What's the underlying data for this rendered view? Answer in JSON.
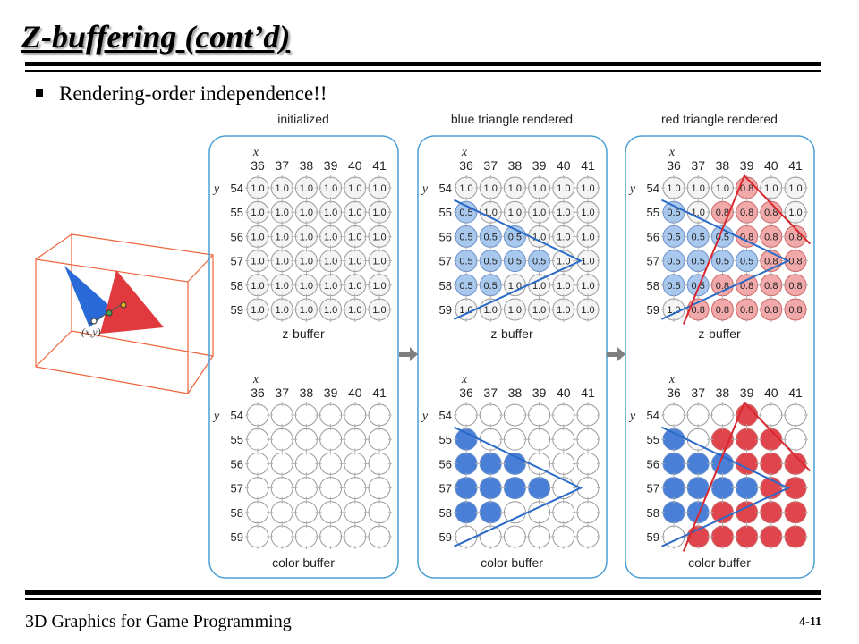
{
  "slide": {
    "title": "Z-buffering (cont’d)",
    "bullet": "Rendering-order independence!!",
    "footer": "3D Graphics for Game Programming",
    "page_number": "4-11"
  },
  "panels": [
    {
      "heading": "initialized",
      "zbuffer_label": "z-buffer",
      "colorbuffer_label": "color buffer"
    },
    {
      "heading": "blue triangle rendered",
      "zbuffer_label": "z-buffer",
      "colorbuffer_label": "color buffer"
    },
    {
      "heading": "red triangle rendered",
      "zbuffer_label": "z-buffer",
      "colorbuffer_label": "color buffer"
    }
  ],
  "grid": {
    "x_axis_label": "x",
    "y_axis_label": "y",
    "columns": [
      "36",
      "37",
      "38",
      "39",
      "40",
      "41"
    ],
    "rows": [
      "54",
      "55",
      "56",
      "57",
      "58",
      "59"
    ]
  },
  "depth_values": [
    [
      [
        "1.0",
        "1.0",
        "1.0",
        "1.0",
        "1.0",
        "1.0"
      ],
      [
        "1.0",
        "1.0",
        "1.0",
        "1.0",
        "1.0",
        "1.0"
      ],
      [
        "1.0",
        "1.0",
        "1.0",
        "1.0",
        "1.0",
        "1.0"
      ],
      [
        "1.0",
        "1.0",
        "1.0",
        "1.0",
        "1.0",
        "1.0"
      ],
      [
        "1.0",
        "1.0",
        "1.0",
        "1.0",
        "1.0",
        "1.0"
      ],
      [
        "1.0",
        "1.0",
        "1.0",
        "1.0",
        "1.0",
        "1.0"
      ]
    ],
    [
      [
        "1.0",
        "1.0",
        "1.0",
        "1.0",
        "1.0",
        "1.0"
      ],
      [
        "0.5",
        "1.0",
        "1.0",
        "1.0",
        "1.0",
        "1.0"
      ],
      [
        "0.5",
        "0.5",
        "0.5",
        "1.0",
        "1.0",
        "1.0"
      ],
      [
        "0.5",
        "0.5",
        "0.5",
        "0.5",
        "1.0",
        "1.0"
      ],
      [
        "0.5",
        "0.5",
        "1.0",
        "1.0",
        "1.0",
        "1.0"
      ],
      [
        "1.0",
        "1.0",
        "1.0",
        "1.0",
        "1.0",
        "1.0"
      ]
    ],
    [
      [
        "1.0",
        "1.0",
        "1.0",
        "0.8",
        "1.0",
        "1.0"
      ],
      [
        "0.5",
        "1.0",
        "0.8",
        "0.8",
        "0.8",
        "1.0"
      ],
      [
        "0.5",
        "0.5",
        "0.5",
        "0.8",
        "0.8",
        "0.8"
      ],
      [
        "0.5",
        "0.5",
        "0.5",
        "0.5",
        "0.8",
        "0.8"
      ],
      [
        "0.5",
        "0.5",
        "0.8",
        "0.8",
        "0.8",
        "0.8"
      ],
      [
        "1.0",
        "0.8",
        "0.8",
        "0.8",
        "0.8",
        "0.8"
      ]
    ]
  ],
  "cell_colors": [
    [
      [
        "w",
        "w",
        "w",
        "w",
        "w",
        "w"
      ],
      [
        "w",
        "w",
        "w",
        "w",
        "w",
        "w"
      ],
      [
        "w",
        "w",
        "w",
        "w",
        "w",
        "w"
      ],
      [
        "w",
        "w",
        "w",
        "w",
        "w",
        "w"
      ],
      [
        "w",
        "w",
        "w",
        "w",
        "w",
        "w"
      ],
      [
        "w",
        "w",
        "w",
        "w",
        "w",
        "w"
      ]
    ],
    [
      [
        "w",
        "w",
        "w",
        "w",
        "w",
        "w"
      ],
      [
        "b",
        "w",
        "w",
        "w",
        "w",
        "w"
      ],
      [
        "b",
        "b",
        "b",
        "w",
        "w",
        "w"
      ],
      [
        "b",
        "b",
        "b",
        "b",
        "w",
        "w"
      ],
      [
        "b",
        "b",
        "w",
        "w",
        "w",
        "w"
      ],
      [
        "w",
        "w",
        "w",
        "w",
        "w",
        "w"
      ]
    ],
    [
      [
        "w",
        "w",
        "w",
        "r",
        "w",
        "w"
      ],
      [
        "b",
        "w",
        "r",
        "r",
        "r",
        "w"
      ],
      [
        "b",
        "b",
        "b",
        "r",
        "r",
        "r"
      ],
      [
        "b",
        "b",
        "b",
        "b",
        "r",
        "r"
      ],
      [
        "b",
        "b",
        "r",
        "r",
        "r",
        "r"
      ],
      [
        "w",
        "r",
        "r",
        "r",
        "r",
        "r"
      ]
    ]
  ],
  "scene": {
    "point_label": "(x,y)"
  },
  "colors": {
    "panel_border": "#4a9fd5",
    "blue_light": "#a9c8ee",
    "blue_dark": "#4a7fd8",
    "red_light": "#f2a9a9",
    "red_dark": "#e0454d",
    "blue_edge": "#2a6ac8",
    "red_edge": "#d8282e",
    "arrow": "#7f7f7f",
    "box": "#f0643c"
  }
}
